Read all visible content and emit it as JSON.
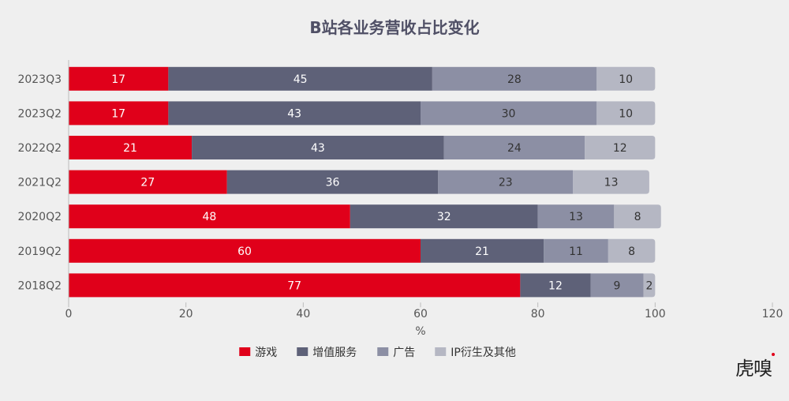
{
  "chart_data": {
    "type": "bar",
    "orientation": "horizontal",
    "stacked": true,
    "title": "B站各业务营收占比变化",
    "categories": [
      "2023Q3",
      "2023Q2",
      "2022Q2",
      "2021Q2",
      "2020Q2",
      "2019Q2",
      "2018Q2"
    ],
    "series": [
      {
        "name": "游戏",
        "color": "#e0001a",
        "label_color": "#ffffff",
        "values": [
          17,
          17,
          21,
          27,
          48,
          60,
          77
        ]
      },
      {
        "name": "增值服务",
        "color": "#5e6178",
        "label_color": "#ffffff",
        "values": [
          45,
          43,
          43,
          36,
          32,
          21,
          12
        ]
      },
      {
        "name": "广告",
        "color": "#8c8fa4",
        "label_color": "#333333",
        "values": [
          28,
          30,
          24,
          23,
          13,
          11,
          9
        ]
      },
      {
        "name": "IP衍生及其他",
        "color": "#b5b7c3",
        "label_color": "#333333",
        "values": [
          10,
          10,
          12,
          13,
          8,
          8,
          2
        ]
      }
    ],
    "xlabel": "%",
    "xlim": [
      0,
      120
    ],
    "xticks": [
      "0",
      "20",
      "40",
      "60",
      "80",
      "100",
      "120"
    ],
    "grid": false,
    "legend_position": "bottom"
  },
  "logo": {
    "text": "虎嗅"
  }
}
